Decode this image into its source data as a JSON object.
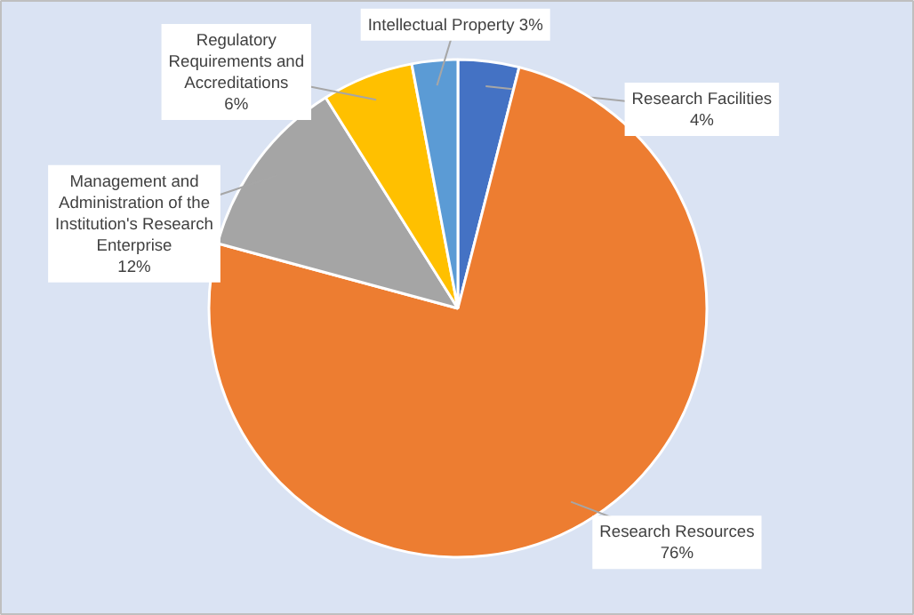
{
  "chart_data": {
    "type": "pie",
    "categories": [
      "Research Facilities",
      "Research Resources",
      "Management and Administration of the Institution's Research Enterprise",
      "Regulatory Requirements and Accreditations",
      "Intellectual Property"
    ],
    "values": [
      4,
      76,
      12,
      6,
      3
    ],
    "colors": [
      "#4472c4",
      "#ed7d31",
      "#a5a5a5",
      "#ffc000",
      "#5b9bd5"
    ],
    "value_labels": [
      "4%",
      "76%",
      "12%",
      "6%",
      "3%"
    ]
  }
}
